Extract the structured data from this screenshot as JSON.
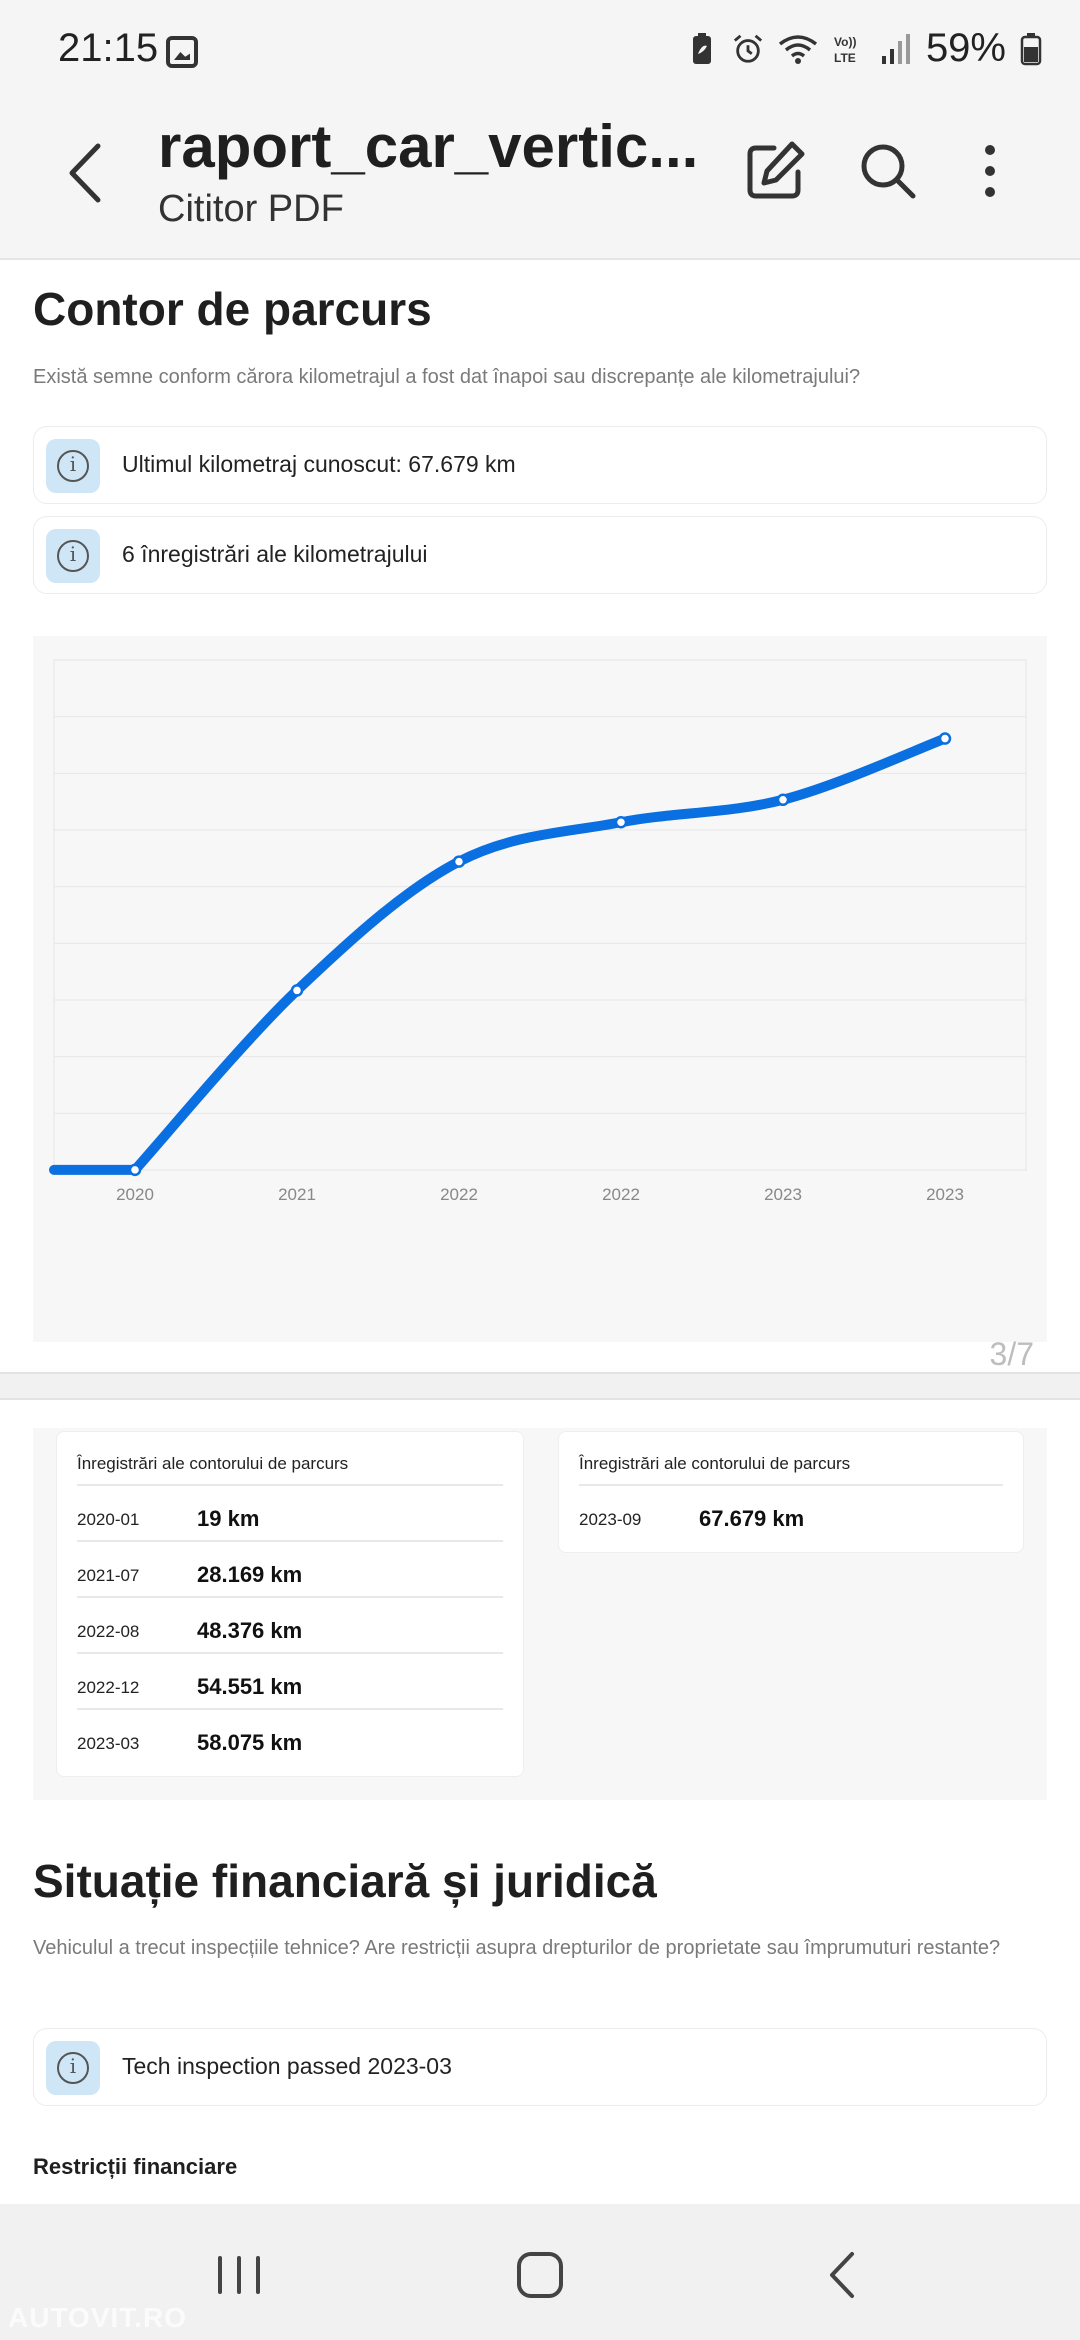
{
  "status_bar": {
    "time": "21:15",
    "battery_percent": "59%",
    "icons": [
      "gallery-icon",
      "battery-saver-icon",
      "alarm-icon",
      "wifi-icon",
      "volte-icon",
      "signal-icon",
      "battery-icon"
    ]
  },
  "app_bar": {
    "title": "raport_car_vertic...",
    "subtitle": "Cititor PDF",
    "actions": [
      "edit-icon",
      "search-icon",
      "more-vert-icon"
    ]
  },
  "odometer_section": {
    "title": "Contor de parcurs",
    "description": "Există semne conform cărora kilometrajul a fost dat înapoi sau discrepanțe ale kilometrajului?",
    "info_rows": [
      {
        "text": "Ultimul kilometraj cunoscut: 67.679 km"
      },
      {
        "text": "6 înregistrări ale kilometrajului"
      }
    ]
  },
  "chart_data": {
    "type": "line",
    "title": "",
    "xlabel": "",
    "ylabel": "",
    "categories": [
      "2020",
      "2021",
      "2022",
      "2022",
      "2023",
      "2023"
    ],
    "series": [
      {
        "values": [
          19,
          28169,
          48376,
          54551,
          58075,
          67679
        ]
      }
    ],
    "ylim": [
      0,
      80000
    ],
    "grid": true,
    "line_color": "#0a6fe0"
  },
  "page_indicator": "3/7",
  "records_cards": [
    {
      "heading": "Înregistrări ale contorului de parcurs",
      "rows": [
        {
          "date": "2020-01",
          "km": "19 km"
        },
        {
          "date": "2021-07",
          "km": "28.169 km"
        },
        {
          "date": "2022-08",
          "km": "48.376 km"
        },
        {
          "date": "2022-12",
          "km": "54.551 km"
        },
        {
          "date": "2023-03",
          "km": "58.075 km"
        }
      ]
    },
    {
      "heading": "Înregistrări ale contorului de parcurs",
      "rows": [
        {
          "date": "2023-09",
          "km": "67.679 km"
        }
      ]
    }
  ],
  "finance_section": {
    "title": "Situație financiară și juridică",
    "description": "Vehiculul a trecut inspecțiile tehnice? Are restricții asupra drepturilor de proprietate sau împrumuturi restante?",
    "info_rows": [
      {
        "text": "Tech inspection passed 2023-03"
      }
    ],
    "subheading": "Restricții financiare"
  },
  "nav_bar": {
    "buttons": [
      "recent-apps-icon",
      "home-icon",
      "back-icon"
    ]
  },
  "watermark": "AUTOVIT.RO"
}
